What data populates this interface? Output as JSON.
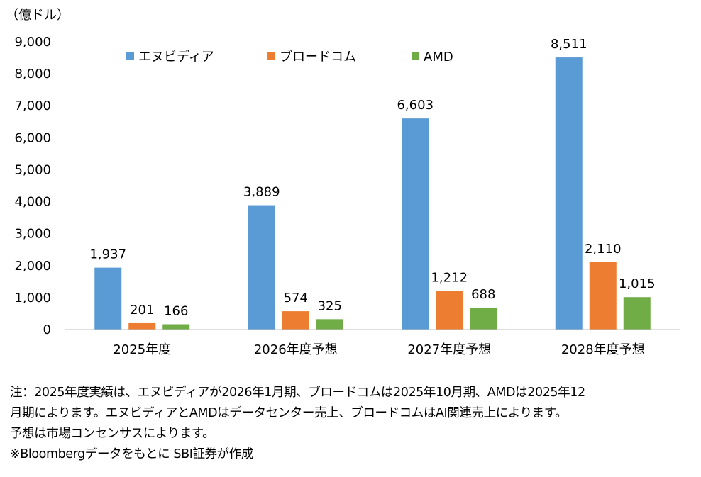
{
  "chart_data": {
    "type": "bar",
    "unit_label": "（億ドル）",
    "categories": [
      "2025年度",
      "2026年度予想",
      "2027年度予想",
      "2028年度予想"
    ],
    "series": [
      {
        "name": "エヌビディア",
        "color": "#5b9bd5",
        "values": [
          1937,
          3889,
          6603,
          8511
        ],
        "labels": [
          "1,937",
          "3,889",
          "6,603",
          "8,511"
        ]
      },
      {
        "name": "ブロードコム",
        "color": "#ed7d31",
        "values": [
          201,
          574,
          1212,
          2110
        ],
        "labels": [
          "201",
          "574",
          "1,212",
          "2,110"
        ]
      },
      {
        "name": "AMD",
        "color": "#70ad47",
        "values": [
          166,
          325,
          688,
          1015
        ],
        "labels": [
          "166",
          "325",
          "688",
          "1,015"
        ]
      }
    ],
    "ylim": [
      0,
      9000
    ],
    "yticks": [
      0,
      1000,
      2000,
      3000,
      4000,
      5000,
      6000,
      7000,
      8000,
      9000
    ],
    "ytick_labels": [
      "0",
      "1,000",
      "2,000",
      "3,000",
      "4,000",
      "5,000",
      "6,000",
      "7,000",
      "8,000",
      "9,000"
    ],
    "grid": false,
    "legend": "top"
  },
  "notes": {
    "line1": "注：2025年度実績は、エヌビディアが2026年1月期、ブロードコムは2025年10月期、AMDは2025年12",
    "line2": "月期によります。エヌビディアとAMDはデータセンター売上、ブロードコムはAI関連売上によります。",
    "line3": "予想は市場コンセンサスによります。",
    "line4": "※Bloombergデータをもとに SBI証券が作成"
  }
}
